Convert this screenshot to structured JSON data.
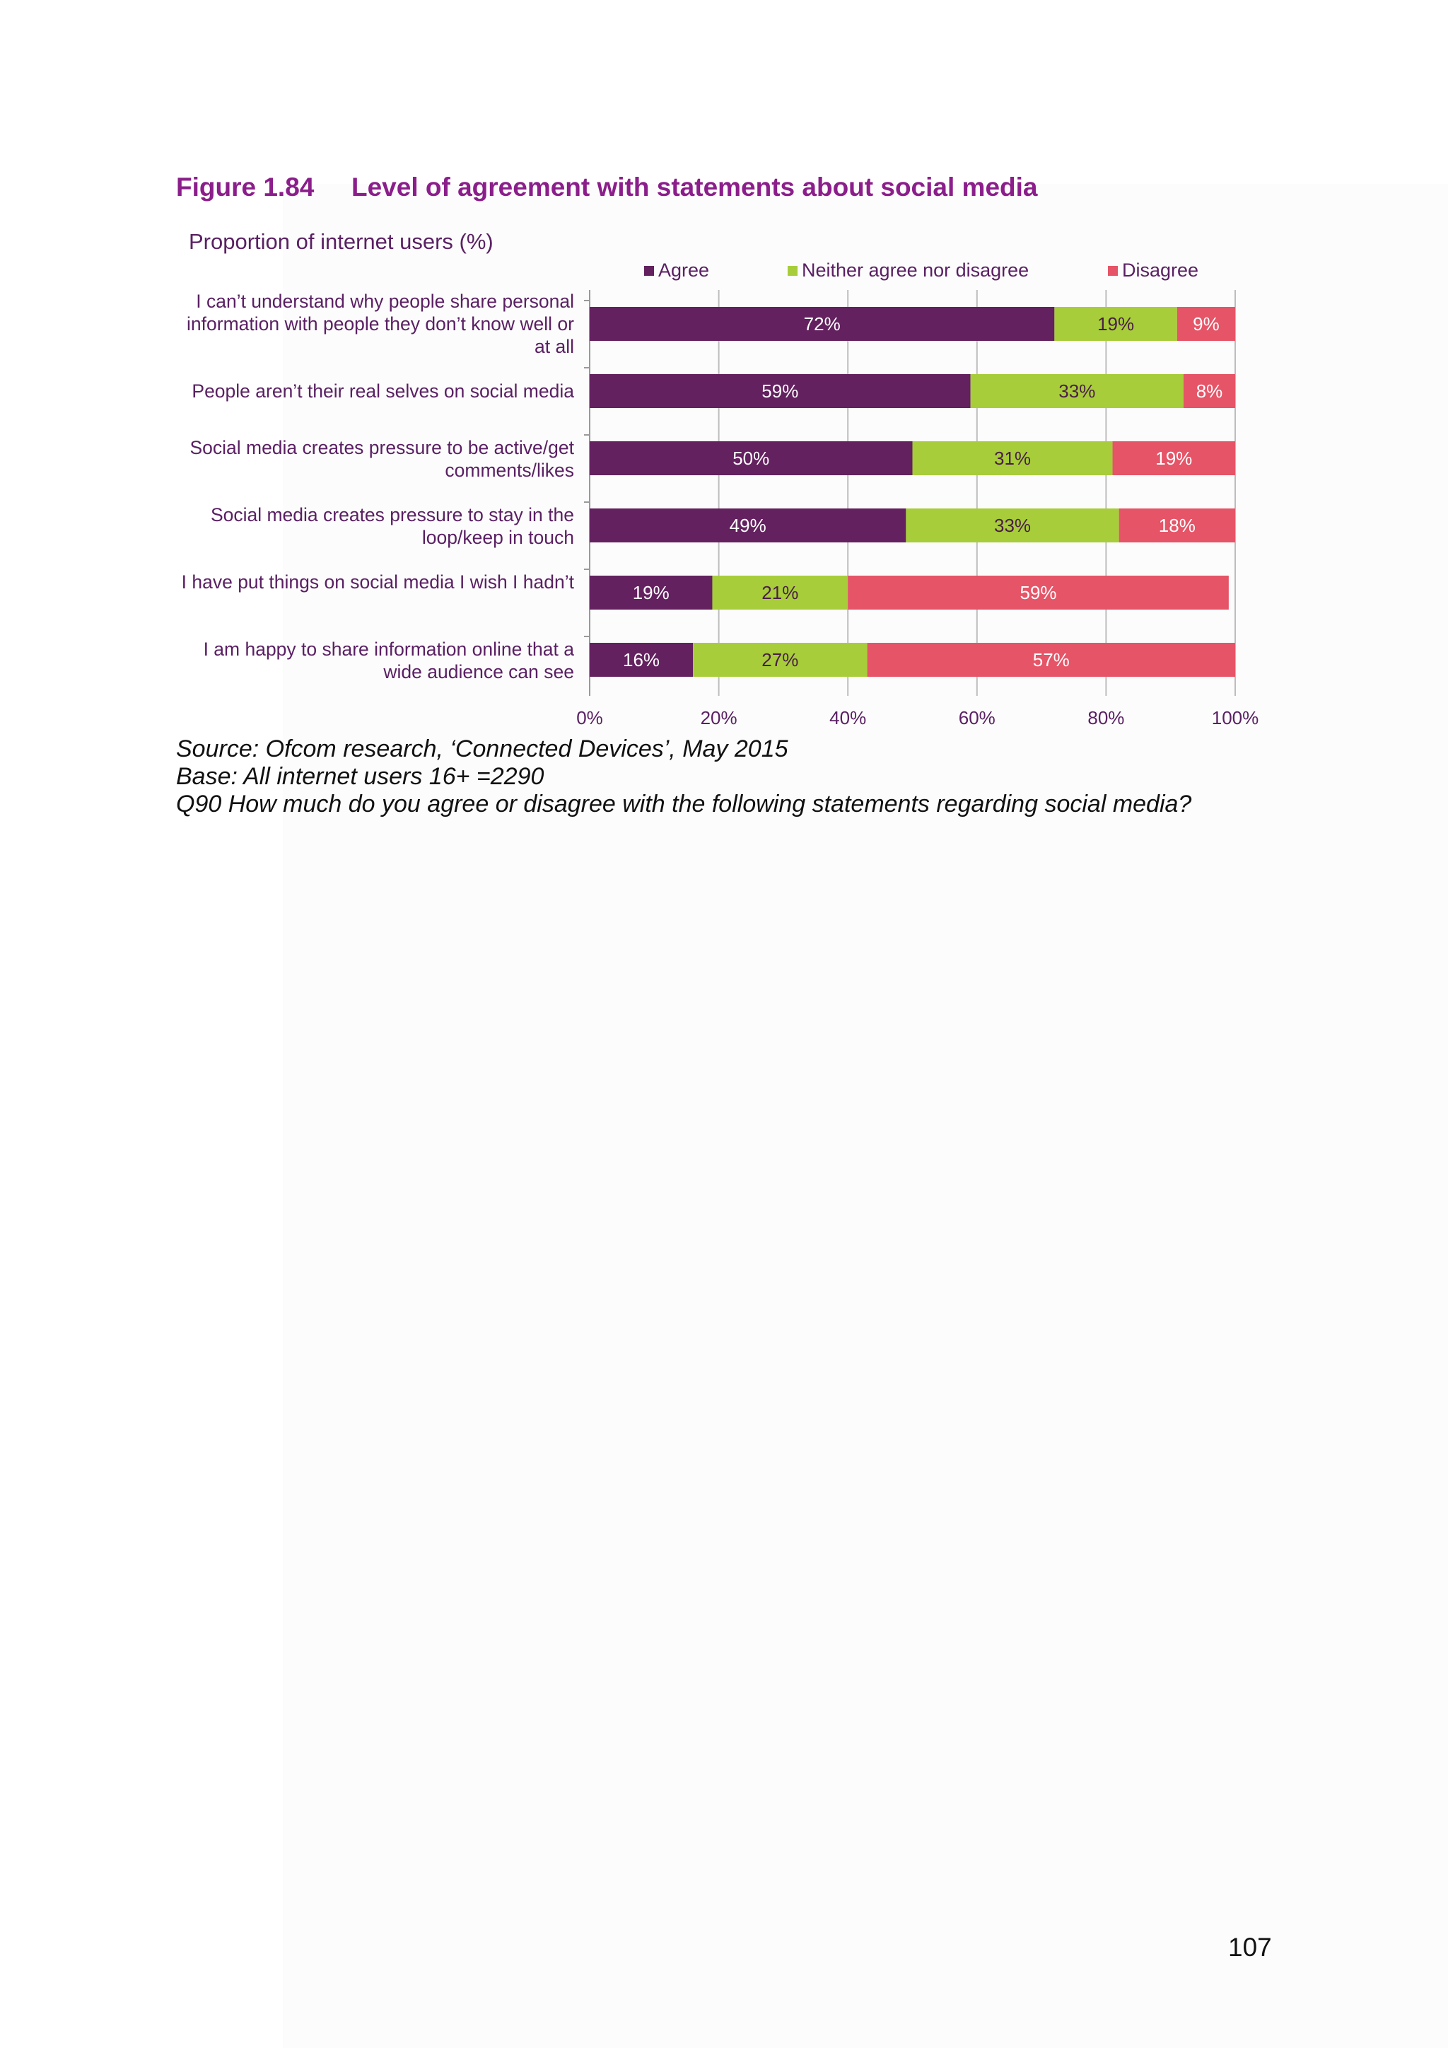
{
  "figure": {
    "number": "Figure 1.84",
    "title": "Level of agreement with statements about social media"
  },
  "chart_data": {
    "type": "bar",
    "orientation": "horizontal",
    "stacked": true,
    "subtitle": "Proportion of internet users (%)",
    "categories": [
      "I can’t understand why people share personal information with people they don’t know well or at all",
      "People aren’t their real selves on social media",
      "Social media creates pressure to be active/get comments/likes",
      "Social media creates pressure to stay in the loop/keep in touch",
      "I have put things on social media I wish I hadn’t",
      "I am happy to share information online that a wide audience can see"
    ],
    "series": [
      {
        "name": "Agree",
        "color": "#63215f",
        "values": [
          72,
          59,
          50,
          49,
          19,
          16
        ],
        "labels": [
          "72%",
          "59%",
          "50%",
          "49%",
          "19%",
          "16%"
        ]
      },
      {
        "name": "Neither agree nor disagree",
        "color": "#a7cd3a",
        "values": [
          19,
          33,
          31,
          33,
          21,
          27
        ],
        "labels": [
          "19%",
          "33%",
          "31%",
          "33%",
          "21%",
          "27%"
        ]
      },
      {
        "name": "Disagree",
        "color": "#e55467",
        "values": [
          9,
          8,
          19,
          18,
          59,
          57
        ],
        "labels": [
          "9%",
          "8%",
          "19%",
          "18%",
          "59%",
          "57%"
        ]
      }
    ],
    "xlim": [
      0,
      100
    ],
    "x_ticks": [
      "0%",
      "20%",
      "40%",
      "60%",
      "80%",
      "100%"
    ],
    "grid": true,
    "legend_position": "top"
  },
  "notes": {
    "source": "Source: Ofcom research, ‘Connected Devices’, May 2015",
    "base": "Base: All internet users 16+ =2290",
    "question": "Q90 How much do you agree or disagree with the following statements regarding social media?"
  },
  "page_number": "107"
}
